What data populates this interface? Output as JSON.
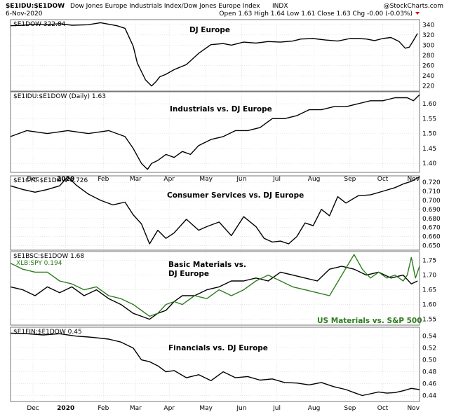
{
  "header": {
    "symbol": "$E1IDU:$E1DOW",
    "description": "Dow Jones Europe Industrials Index/Dow Jones Europe Index",
    "exchange": "INDX",
    "source": "@StockCharts.com",
    "date": "6-Nov-2020",
    "quote": "Open 1.63  High 1.64  Low 1.61  Close 1.63  Chg -0.00 (-0.03%)"
  },
  "colors": {
    "line": "#000000",
    "green": "#2e7d1e",
    "grid": "#d9d9d9",
    "red_arrow": "#cc0000"
  },
  "months": [
    "Dec",
    "2020",
    "Feb",
    "Mar",
    "Apr",
    "May",
    "Jun",
    "Jul",
    "Aug",
    "Sep",
    "Oct",
    "Nov"
  ],
  "chart_data": [
    {
      "type": "line",
      "legend": "$E1DOW 322.84",
      "annotation": "DJ Europe",
      "ylim": [
        210,
        350
      ],
      "yticks": [
        220,
        240,
        260,
        280,
        300,
        320,
        340
      ],
      "series": [
        {
          "name": "DJ Europe",
          "color": "#000000",
          "x": [
            0,
            0.03,
            0.06,
            0.09,
            0.12,
            0.15,
            0.19,
            0.22,
            0.26,
            0.28,
            0.3,
            0.31,
            0.33,
            0.345,
            0.355,
            0.365,
            0.38,
            0.4,
            0.43,
            0.46,
            0.49,
            0.52,
            0.54,
            0.57,
            0.6,
            0.63,
            0.66,
            0.69,
            0.71,
            0.74,
            0.77,
            0.8,
            0.83,
            0.85,
            0.87,
            0.89,
            0.91,
            0.93,
            0.95,
            0.965,
            0.975,
            0.985,
            0.995
          ],
          "values": [
            338,
            339,
            341,
            340,
            342,
            339,
            340,
            344,
            338,
            333,
            298,
            265,
            232,
            220,
            228,
            238,
            243,
            252,
            262,
            284,
            301,
            303,
            300,
            306,
            304,
            307,
            306,
            308,
            312,
            313,
            310,
            308,
            313,
            313,
            312,
            309,
            313,
            315,
            307,
            294,
            296,
            309,
            323
          ]
        }
      ]
    },
    {
      "type": "line",
      "legend": "$E1IDU:$E1DOW (Daily) 1.63",
      "annotation": "Industrials vs. DJ Europe",
      "ylim": [
        1.37,
        1.64
      ],
      "yticks": [
        1.4,
        1.45,
        1.5,
        1.55,
        1.6
      ],
      "series": [
        {
          "name": "Industrials vs. DJ Europe",
          "color": "#000000",
          "x": [
            0,
            0.04,
            0.09,
            0.14,
            0.19,
            0.24,
            0.28,
            0.3,
            0.32,
            0.335,
            0.345,
            0.36,
            0.38,
            0.4,
            0.42,
            0.44,
            0.46,
            0.49,
            0.52,
            0.55,
            0.58,
            0.61,
            0.64,
            0.67,
            0.7,
            0.73,
            0.76,
            0.79,
            0.82,
            0.85,
            0.88,
            0.91,
            0.94,
            0.97,
            0.985,
            1.0
          ],
          "values": [
            1.49,
            1.51,
            1.5,
            1.51,
            1.5,
            1.51,
            1.49,
            1.45,
            1.4,
            1.38,
            1.4,
            1.41,
            1.43,
            1.42,
            1.44,
            1.43,
            1.46,
            1.48,
            1.49,
            1.51,
            1.51,
            1.52,
            1.55,
            1.55,
            1.56,
            1.58,
            1.58,
            1.59,
            1.59,
            1.6,
            1.61,
            1.61,
            1.62,
            1.62,
            1.61,
            1.63
          ]
        }
      ]
    },
    {
      "type": "line",
      "legend": "$E1CYC:$E1DOW 0.726",
      "annotation": "Consumer Services vs. DJ Europe",
      "ylim": [
        0.645,
        0.727
      ],
      "yticks": [
        0.65,
        0.66,
        0.67,
        0.68,
        0.69,
        0.7,
        0.71,
        0.72
      ],
      "series": [
        {
          "name": "Consumer Services vs. DJ Europe",
          "color": "#000000",
          "x": [
            0,
            0.03,
            0.06,
            0.09,
            0.12,
            0.14,
            0.16,
            0.19,
            0.22,
            0.25,
            0.28,
            0.3,
            0.32,
            0.34,
            0.36,
            0.38,
            0.4,
            0.43,
            0.46,
            0.48,
            0.51,
            0.54,
            0.57,
            0.6,
            0.62,
            0.64,
            0.66,
            0.68,
            0.7,
            0.72,
            0.74,
            0.76,
            0.78,
            0.8,
            0.82,
            0.85,
            0.88,
            0.91,
            0.94,
            0.96,
            0.98,
            1.0
          ],
          "values": [
            0.716,
            0.712,
            0.709,
            0.712,
            0.716,
            0.726,
            0.717,
            0.707,
            0.7,
            0.695,
            0.698,
            0.684,
            0.674,
            0.652,
            0.667,
            0.658,
            0.664,
            0.679,
            0.667,
            0.671,
            0.676,
            0.661,
            0.682,
            0.671,
            0.658,
            0.654,
            0.655,
            0.652,
            0.66,
            0.675,
            0.672,
            0.69,
            0.683,
            0.704,
            0.697,
            0.705,
            0.706,
            0.71,
            0.714,
            0.718,
            0.721,
            0.726
          ]
        }
      ]
    },
    {
      "type": "line",
      "legend": "$E1BSC:$E1DOW 1.68",
      "legend2": "XLB:SPY 0.194",
      "annotation": "Basic Materials vs.",
      "annotation_line2": "DJ Europe",
      "annotation_green": "US Materials vs. S&P 500",
      "ylim": [
        1.53,
        1.78
      ],
      "yticks": [
        1.55,
        1.6,
        1.65,
        1.7,
        1.75
      ],
      "series": [
        {
          "name": "$E1BSC:$E1DOW",
          "color": "#000000",
          "x": [
            0,
            0.03,
            0.06,
            0.09,
            0.12,
            0.15,
            0.18,
            0.21,
            0.24,
            0.27,
            0.3,
            0.32,
            0.34,
            0.36,
            0.38,
            0.4,
            0.42,
            0.45,
            0.48,
            0.51,
            0.54,
            0.57,
            0.6,
            0.63,
            0.66,
            0.69,
            0.72,
            0.75,
            0.78,
            0.81,
            0.84,
            0.87,
            0.9,
            0.93,
            0.96,
            0.98,
            0.995
          ],
          "values": [
            1.66,
            1.65,
            1.63,
            1.66,
            1.64,
            1.66,
            1.63,
            1.65,
            1.62,
            1.6,
            1.57,
            1.56,
            1.55,
            1.57,
            1.58,
            1.61,
            1.63,
            1.63,
            1.65,
            1.66,
            1.68,
            1.68,
            1.69,
            1.68,
            1.71,
            1.7,
            1.69,
            1.68,
            1.72,
            1.73,
            1.72,
            1.7,
            1.71,
            1.69,
            1.7,
            1.67,
            1.68
          ]
        },
        {
          "name": "XLB:SPY",
          "color": "#2e7d1e",
          "x": [
            0,
            0.03,
            0.06,
            0.09,
            0.12,
            0.15,
            0.18,
            0.21,
            0.24,
            0.27,
            0.3,
            0.32,
            0.34,
            0.36,
            0.38,
            0.4,
            0.42,
            0.45,
            0.48,
            0.51,
            0.54,
            0.57,
            0.6,
            0.63,
            0.66,
            0.69,
            0.72,
            0.75,
            0.78,
            0.81,
            0.84,
            0.86,
            0.88,
            0.9,
            0.92,
            0.94,
            0.96,
            0.97,
            0.98,
            0.99,
            1.0
          ],
          "values": [
            1.74,
            1.72,
            1.71,
            1.71,
            1.68,
            1.67,
            1.65,
            1.66,
            1.63,
            1.62,
            1.6,
            1.58,
            1.56,
            1.57,
            1.6,
            1.61,
            1.6,
            1.63,
            1.62,
            1.65,
            1.63,
            1.65,
            1.68,
            1.7,
            1.68,
            1.66,
            1.65,
            1.64,
            1.63,
            1.7,
            1.77,
            1.72,
            1.69,
            1.71,
            1.69,
            1.7,
            1.68,
            1.7,
            1.76,
            1.69,
            1.73
          ]
        }
      ]
    },
    {
      "type": "line",
      "legend": "$E1FIN:$E1DOW 0.45",
      "annotation": "Financials vs. DJ Europe",
      "ylim": [
        0.43,
        0.555
      ],
      "yticks": [
        0.44,
        0.46,
        0.48,
        0.5,
        0.52,
        0.54
      ],
      "series": [
        {
          "name": "Financials vs. DJ Europe",
          "color": "#000000",
          "x": [
            0,
            0.04,
            0.08,
            0.12,
            0.16,
            0.2,
            0.24,
            0.27,
            0.3,
            0.32,
            0.34,
            0.36,
            0.38,
            0.4,
            0.43,
            0.46,
            0.49,
            0.52,
            0.55,
            0.58,
            0.61,
            0.64,
            0.67,
            0.7,
            0.73,
            0.76,
            0.79,
            0.82,
            0.84,
            0.86,
            0.88,
            0.9,
            0.92,
            0.94,
            0.96,
            0.98,
            1.0
          ],
          "values": [
            0.545,
            0.544,
            0.542,
            0.544,
            0.54,
            0.538,
            0.535,
            0.53,
            0.52,
            0.5,
            0.497,
            0.49,
            0.48,
            0.482,
            0.47,
            0.475,
            0.465,
            0.48,
            0.47,
            0.472,
            0.466,
            0.468,
            0.462,
            0.461,
            0.458,
            0.462,
            0.455,
            0.45,
            0.445,
            0.44,
            0.443,
            0.446,
            0.444,
            0.445,
            0.448,
            0.452,
            0.45
          ]
        }
      ]
    }
  ]
}
